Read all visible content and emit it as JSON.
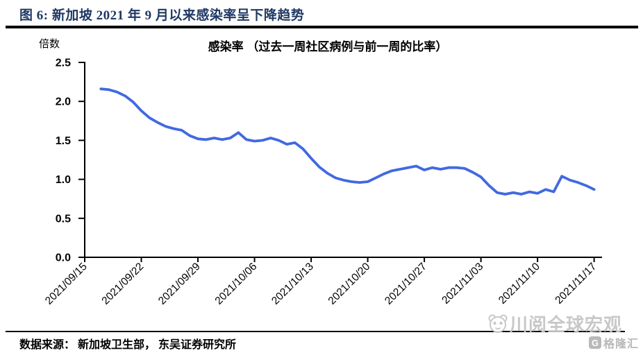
{
  "header": {
    "title": "图 6:  新加坡 2021 年 9 月以来感染率呈下降趋势"
  },
  "chart": {
    "unit_label": "倍数",
    "title": "感染率 （过去一周社区病例与前一周的比率）"
  },
  "chart_data": {
    "type": "line",
    "title": "感染率 （过去一周社区病例与前一周的比率）",
    "ylabel": "倍数",
    "xlabel": "",
    "ylim": [
      0,
      2.5
    ],
    "grid": false,
    "legend": "none",
    "line_color": "#4169e1",
    "axis_color": "#000000",
    "y_ticks": [
      "0.0",
      "0.5",
      "1.0",
      "1.5",
      "2.0",
      "2.5"
    ],
    "x_tick_labels": [
      "2021/09/15",
      "2021/09/22",
      "2021/09/29",
      "2021/10/06",
      "2021/10/13",
      "2021/10/20",
      "2021/10/27",
      "2021/11/03",
      "2021/11/10",
      "2021/11/17"
    ],
    "x": [
      "2021/09/17",
      "2021/09/18",
      "2021/09/19",
      "2021/09/20",
      "2021/09/21",
      "2021/09/22",
      "2021/09/23",
      "2021/09/24",
      "2021/09/25",
      "2021/09/26",
      "2021/09/27",
      "2021/09/28",
      "2021/09/29",
      "2021/09/30",
      "2021/10/01",
      "2021/10/02",
      "2021/10/03",
      "2021/10/04",
      "2021/10/05",
      "2021/10/06",
      "2021/10/07",
      "2021/10/08",
      "2021/10/09",
      "2021/10/10",
      "2021/10/11",
      "2021/10/12",
      "2021/10/13",
      "2021/10/14",
      "2021/10/15",
      "2021/10/16",
      "2021/10/17",
      "2021/10/18",
      "2021/10/19",
      "2021/10/20",
      "2021/10/21",
      "2021/10/22",
      "2021/10/23",
      "2021/10/24",
      "2021/10/25",
      "2021/10/26",
      "2021/10/27",
      "2021/10/28",
      "2021/10/29",
      "2021/10/30",
      "2021/10/31",
      "2021/11/01",
      "2021/11/02",
      "2021/11/03",
      "2021/11/04",
      "2021/11/05",
      "2021/11/06",
      "2021/11/07",
      "2021/11/08",
      "2021/11/09",
      "2021/11/10",
      "2021/11/11",
      "2021/11/12",
      "2021/11/13",
      "2021/11/14",
      "2021/11/15",
      "2021/11/16",
      "2021/11/17"
    ],
    "values": [
      2.16,
      2.15,
      2.12,
      2.07,
      1.99,
      1.88,
      1.79,
      1.73,
      1.68,
      1.65,
      1.63,
      1.56,
      1.52,
      1.51,
      1.53,
      1.51,
      1.53,
      1.6,
      1.51,
      1.49,
      1.5,
      1.53,
      1.5,
      1.45,
      1.47,
      1.39,
      1.27,
      1.16,
      1.08,
      1.02,
      0.99,
      0.97,
      0.96,
      0.97,
      1.02,
      1.07,
      1.11,
      1.13,
      1.15,
      1.17,
      1.12,
      1.15,
      1.13,
      1.15,
      1.15,
      1.14,
      1.09,
      1.03,
      0.92,
      0.83,
      0.81,
      0.83,
      0.81,
      0.84,
      0.82,
      0.87,
      0.84,
      1.04,
      0.99,
      0.96,
      0.92,
      0.87
    ]
  },
  "footer": {
    "source": "数据来源：  新加坡卫生部，  东吴证券研究所"
  },
  "watermarks": {
    "brand": "川阅全球宏观",
    "logo_text": "格隆汇",
    "logo_glyph": "G"
  }
}
